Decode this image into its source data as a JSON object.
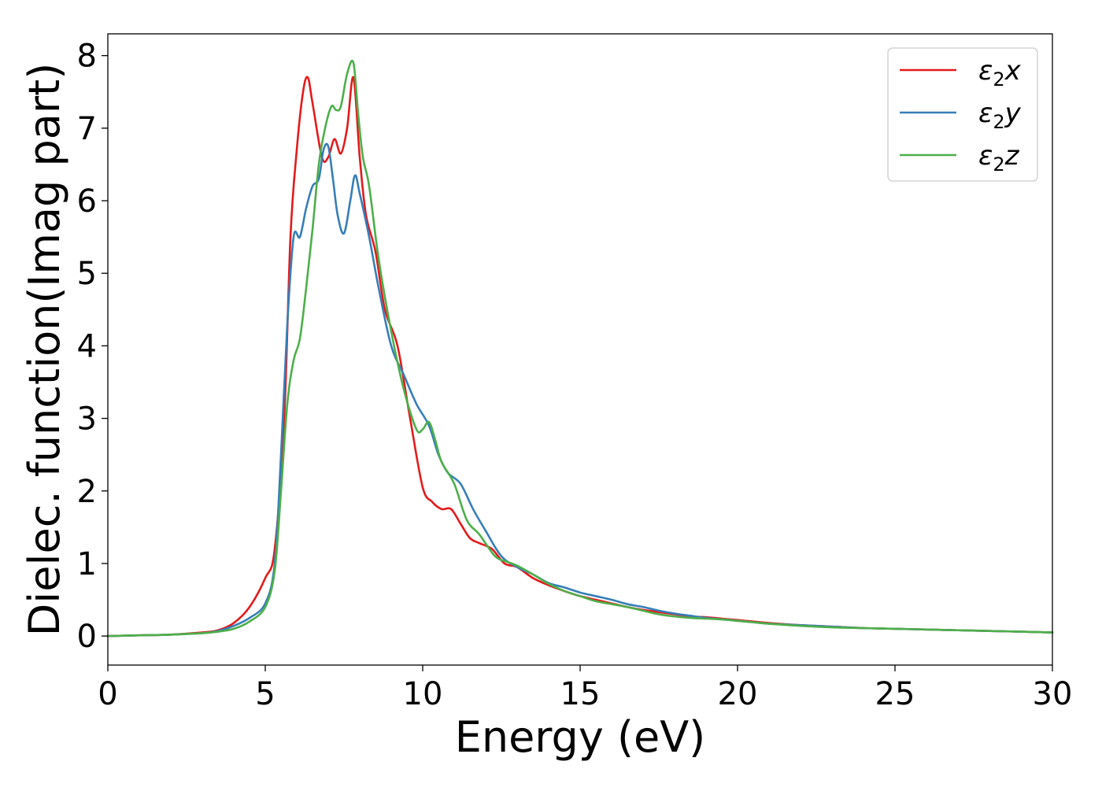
{
  "chart_data": {
    "type": "line",
    "xlabel": "Energy (eV)",
    "ylabel": "Dielec. function(Imag part)",
    "xlim": [
      0,
      30
    ],
    "ylim": [
      -0.4,
      8.3
    ],
    "xticks": [
      "0",
      "5",
      "10",
      "15",
      "20",
      "25",
      "30"
    ],
    "yticks": [
      "0",
      "1",
      "2",
      "3",
      "4",
      "5",
      "6",
      "7",
      "8"
    ],
    "grid": false,
    "legend_position": "top-right",
    "series": [
      {
        "name": "ε₂x",
        "legend_base": "ε",
        "legend_sub": "2",
        "legend_suffix": "x",
        "color": "#e41a1c",
        "x": [
          0,
          1,
          2,
          3,
          3.5,
          4,
          4.5,
          5,
          5.3,
          5.6,
          5.8,
          6.0,
          6.2,
          6.35,
          6.5,
          6.8,
          7.0,
          7.2,
          7.4,
          7.6,
          7.8,
          8.0,
          8.2,
          8.5,
          8.8,
          9.2,
          9.6,
          10.0,
          10.3,
          10.6,
          10.9,
          11.2,
          11.5,
          11.8,
          12.2,
          12.6,
          13.0,
          13.5,
          14.0,
          14.5,
          15,
          15.5,
          16,
          16.5,
          17,
          17.5,
          18,
          18.5,
          19,
          19.5,
          20,
          20.5,
          21,
          22,
          23,
          24,
          25,
          26,
          27,
          28,
          29,
          30
        ],
        "y": [
          0.0,
          0.01,
          0.02,
          0.05,
          0.08,
          0.18,
          0.4,
          0.8,
          1.2,
          3.0,
          5.5,
          6.7,
          7.5,
          7.7,
          7.35,
          6.6,
          6.6,
          6.85,
          6.65,
          7.0,
          7.7,
          6.6,
          5.8,
          5.3,
          4.5,
          4.0,
          3.0,
          2.05,
          1.85,
          1.75,
          1.75,
          1.55,
          1.35,
          1.28,
          1.2,
          1.0,
          0.95,
          0.8,
          0.7,
          0.62,
          0.55,
          0.5,
          0.45,
          0.4,
          0.36,
          0.33,
          0.3,
          0.27,
          0.26,
          0.24,
          0.22,
          0.2,
          0.18,
          0.15,
          0.13,
          0.11,
          0.1,
          0.09,
          0.08,
          0.07,
          0.06,
          0.05
        ]
      },
      {
        "name": "ε₂y",
        "legend_base": "ε",
        "legend_sub": "2",
        "legend_suffix": "y",
        "color": "#377eb8",
        "x": [
          0,
          1,
          2,
          3,
          3.5,
          4,
          4.5,
          5,
          5.3,
          5.5,
          5.7,
          5.9,
          6.1,
          6.3,
          6.5,
          6.7,
          6.85,
          7.0,
          7.15,
          7.3,
          7.5,
          7.7,
          7.85,
          8.0,
          8.3,
          8.6,
          9.0,
          9.4,
          9.8,
          10.2,
          10.5,
          10.8,
          11.2,
          11.6,
          12.0,
          12.5,
          13.0,
          13.5,
          14.0,
          14.5,
          15,
          15.5,
          16,
          16.5,
          17,
          17.5,
          18,
          18.5,
          19,
          19.5,
          20,
          20.5,
          21,
          22,
          23,
          24,
          25,
          26,
          27,
          28,
          29,
          30
        ],
        "y": [
          0.0,
          0.01,
          0.02,
          0.04,
          0.07,
          0.14,
          0.25,
          0.45,
          1.0,
          2.5,
          4.3,
          5.5,
          5.5,
          5.9,
          6.2,
          6.3,
          6.7,
          6.75,
          6.3,
          5.8,
          5.55,
          6.0,
          6.35,
          6.1,
          5.5,
          4.8,
          4.0,
          3.6,
          3.2,
          2.9,
          2.5,
          2.25,
          2.1,
          1.75,
          1.45,
          1.1,
          0.95,
          0.85,
          0.73,
          0.67,
          0.6,
          0.55,
          0.5,
          0.44,
          0.4,
          0.35,
          0.31,
          0.28,
          0.25,
          0.23,
          0.21,
          0.19,
          0.17,
          0.15,
          0.13,
          0.11,
          0.1,
          0.09,
          0.08,
          0.07,
          0.06,
          0.05
        ]
      },
      {
        "name": "ε₂z",
        "legend_base": "ε",
        "legend_sub": "2",
        "legend_suffix": "z",
        "color": "#4daf4a",
        "x": [
          0,
          1,
          2,
          3,
          3.5,
          4,
          4.5,
          5,
          5.3,
          5.5,
          5.7,
          5.9,
          6.1,
          6.3,
          6.5,
          6.7,
          6.9,
          7.1,
          7.25,
          7.4,
          7.6,
          7.8,
          7.95,
          8.1,
          8.3,
          8.6,
          9.0,
          9.4,
          9.8,
          10.0,
          10.2,
          10.4,
          10.6,
          11.0,
          11.4,
          11.8,
          12.3,
          12.7,
          13.0,
          13.5,
          14.0,
          14.5,
          15,
          15.5,
          16,
          16.5,
          17,
          17.5,
          18,
          18.5,
          19,
          19.5,
          20,
          20.5,
          21,
          22,
          23,
          24,
          25,
          26,
          27,
          28,
          29,
          30
        ],
        "y": [
          0.0,
          0.01,
          0.02,
          0.04,
          0.06,
          0.1,
          0.2,
          0.4,
          0.9,
          2.0,
          3.2,
          3.8,
          4.1,
          4.8,
          5.6,
          6.5,
          7.0,
          7.3,
          7.25,
          7.3,
          7.75,
          7.9,
          7.2,
          6.6,
          6.2,
          5.2,
          4.2,
          3.4,
          2.85,
          2.85,
          2.95,
          2.7,
          2.4,
          2.1,
          1.6,
          1.4,
          1.1,
          1.02,
          0.97,
          0.85,
          0.72,
          0.62,
          0.55,
          0.48,
          0.44,
          0.4,
          0.35,
          0.3,
          0.27,
          0.25,
          0.24,
          0.23,
          0.21,
          0.19,
          0.17,
          0.14,
          0.12,
          0.11,
          0.1,
          0.09,
          0.08,
          0.07,
          0.06,
          0.05
        ]
      }
    ]
  }
}
